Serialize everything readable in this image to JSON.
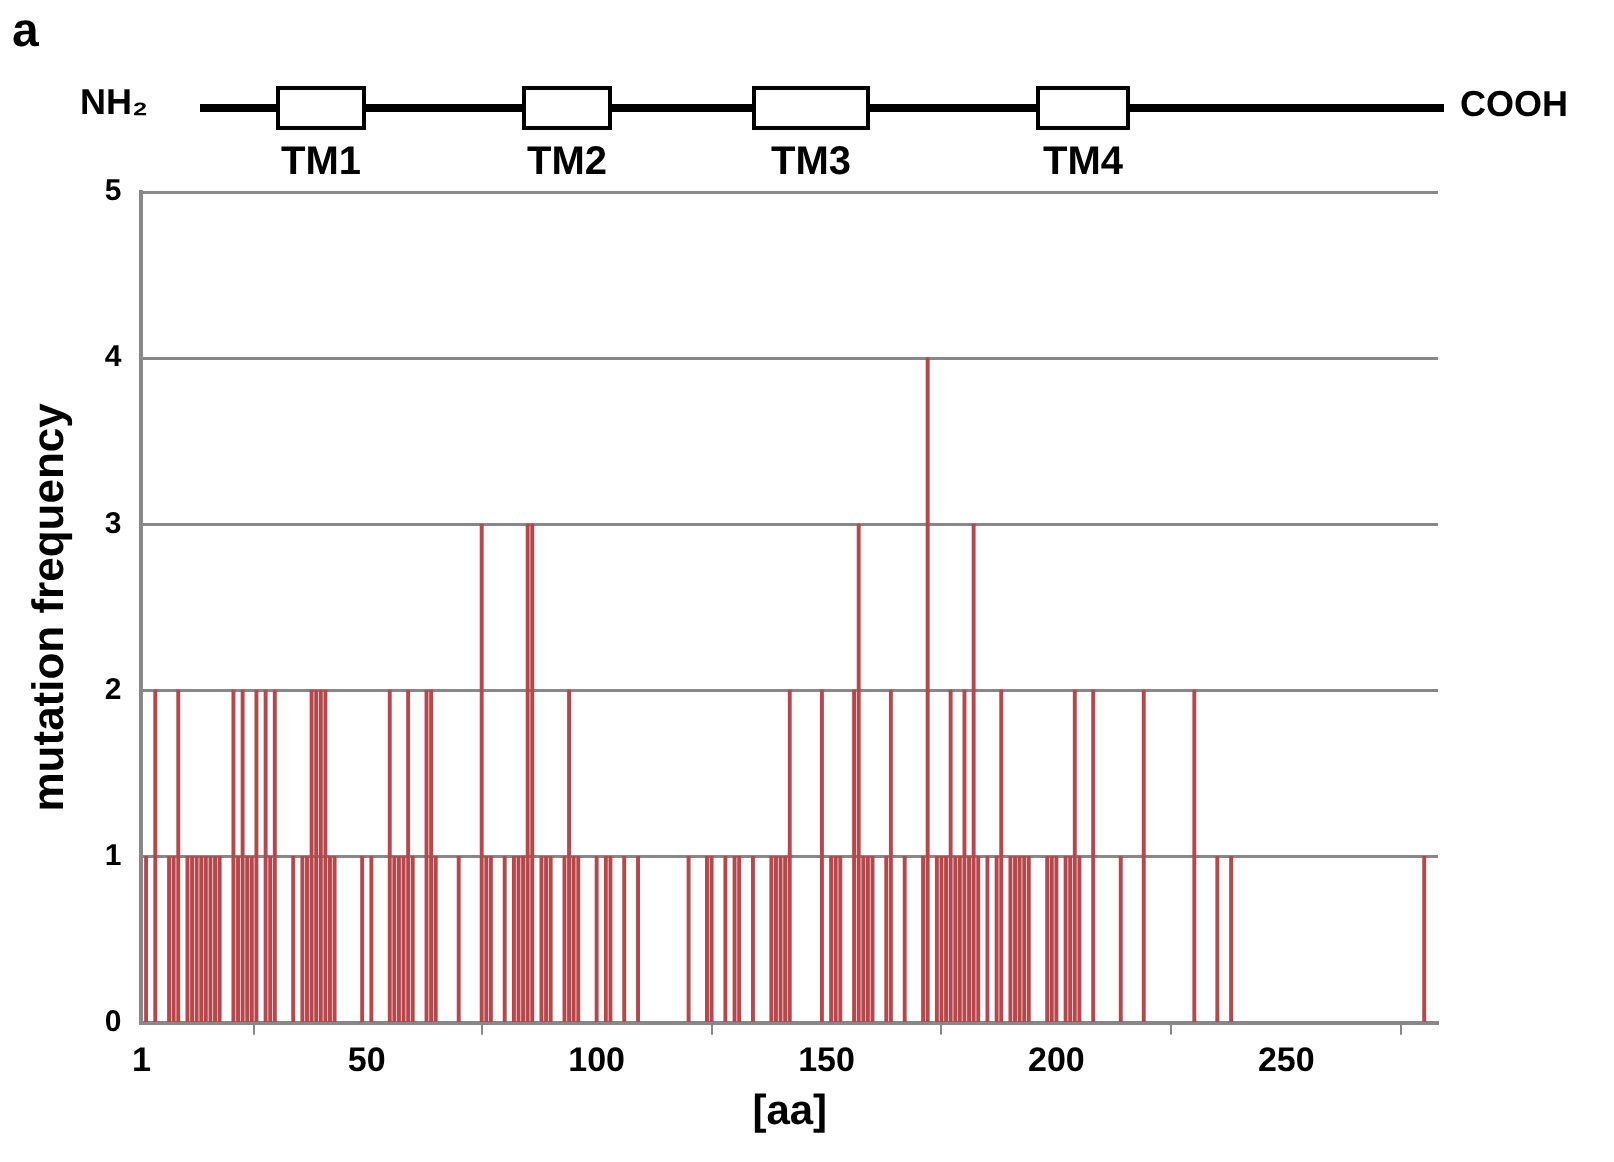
{
  "chart_data": {
    "type": "bar",
    "xlabel": "[aa]",
    "ylabel": "mutation frequency",
    "annotations": [
      "a",
      "NH₂",
      "TM1",
      "TM2",
      "TM3",
      "TM4",
      "COOH"
    ],
    "x": [
      2,
      4,
      7,
      8,
      9,
      11,
      12,
      13,
      14,
      15,
      16,
      17,
      18,
      21,
      22,
      23,
      24,
      25,
      26,
      28,
      29,
      30,
      34,
      36,
      37,
      38,
      39,
      40,
      41,
      42,
      43,
      49,
      51,
      55,
      56,
      57,
      58,
      59,
      60,
      63,
      64,
      65,
      70,
      75,
      76,
      77,
      80,
      82,
      83,
      84,
      85,
      86,
      88,
      89,
      90,
      93,
      94,
      95,
      96,
      100,
      102,
      103,
      106,
      109,
      120,
      124,
      125,
      128,
      130,
      131,
      134,
      138,
      139,
      140,
      141,
      142,
      149,
      151,
      152,
      153,
      156,
      157,
      158,
      159,
      160,
      163,
      164,
      167,
      171,
      172,
      174,
      175,
      176,
      177,
      178,
      179,
      180,
      181,
      182,
      183,
      185,
      187,
      188,
      190,
      191,
      192,
      193,
      194,
      198,
      199,
      200,
      202,
      203,
      204,
      205,
      208,
      214,
      219,
      230,
      235,
      238,
      280
    ],
    "series": [
      {
        "color": "#b8474c",
        "values": [
          1,
          2,
          1,
          1,
          2,
          1,
          1,
          1,
          1,
          1,
          1,
          1,
          1,
          2,
          1,
          2,
          1,
          1,
          2,
          2,
          1,
          2,
          1,
          1,
          1,
          2,
          2,
          2,
          2,
          1,
          1,
          1,
          1,
          2,
          1,
          1,
          1,
          2,
          1,
          2,
          2,
          1,
          1,
          3,
          1,
          1,
          1,
          1,
          1,
          1,
          3,
          3,
          1,
          1,
          1,
          1,
          2,
          1,
          1,
          1,
          1,
          1,
          1,
          1,
          1,
          1,
          1,
          1,
          1,
          1,
          1,
          1,
          1,
          1,
          1,
          2,
          2,
          1,
          1,
          1,
          2,
          3,
          1,
          1,
          1,
          1,
          2,
          1,
          1,
          4,
          1,
          1,
          1,
          2,
          1,
          1,
          2,
          1,
          3,
          1,
          1,
          1,
          2,
          1,
          1,
          1,
          1,
          1,
          1,
          1,
          1,
          1,
          1,
          2,
          1,
          2,
          1,
          2,
          2,
          1,
          1,
          1
        ]
      }
    ],
    "xlim": [
      1,
      283
    ],
    "xticks": [
      1,
      50,
      100,
      150,
      200,
      250
    ],
    "ylim": [
      0,
      5
    ],
    "yticks": [
      0,
      1,
      2,
      3,
      4,
      5
    ],
    "grid": "y",
    "legend": false
  }
}
